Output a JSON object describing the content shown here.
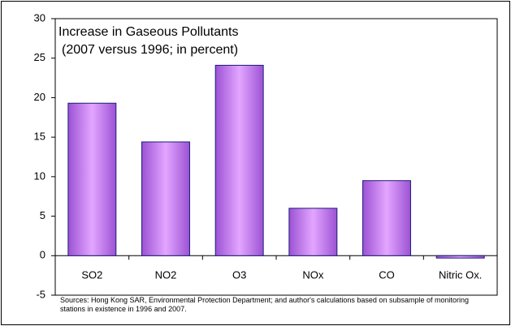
{
  "chart_data": {
    "type": "bar",
    "title": "Increase in Gaseous Pollutants",
    "subtitle": "(2007 versus 1996; in percent)",
    "source": "Sources: Hong Kong SAR, Environmental Protection Department; and author's calculations based on subsample of monitoring stations in existence in 1996 and 2007.",
    "categories": [
      "SO2",
      "NO2",
      "O3",
      "NOx",
      "CO",
      "Nitric Ox."
    ],
    "values": [
      19.3,
      14.4,
      24.1,
      6.0,
      9.5,
      -0.3
    ],
    "color": "#e3a6ff",
    "ylim": [
      -5,
      30
    ],
    "yticks": [
      -5,
      0,
      5,
      10,
      15,
      20,
      25,
      30
    ],
    "grid": false
  }
}
